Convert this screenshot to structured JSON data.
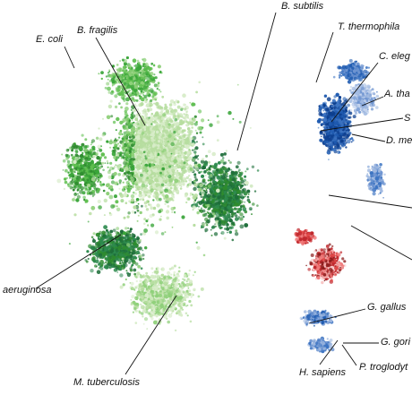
{
  "palette": {
    "bacteria": [
      "#2e8b2e",
      "#3aa53a",
      "#5fbf4f",
      "#8fd07a",
      "#b6dd9f",
      "#d7ecc8",
      "#1e6e3a",
      "#2d8a4e"
    ],
    "animals_blue": [
      "#0d3f8f",
      "#1f5bb0",
      "#3d74c2",
      "#6f95d1",
      "#9fb8e0",
      "#c9d7ef"
    ],
    "plants_red": [
      "#8b1a1a",
      "#c0282d",
      "#e04848",
      "#f07b7b",
      "#f6a9a9",
      "#fbd3d3"
    ],
    "line": "#111111"
  },
  "clusters": [
    {
      "id": "bacteria",
      "palette": "bacteria",
      "icon": "green-point-cloud"
    },
    {
      "id": "eukaryote-upper",
      "palette": "animals_blue",
      "icon": "blue-point-cloud"
    },
    {
      "id": "plant-like",
      "palette": "plants_red",
      "icon": "red-point-cloud"
    },
    {
      "id": "primates",
      "palette": "animals_blue",
      "icon": "blue-point-cloud"
    }
  ],
  "labels": {
    "e_coli": "E. coli",
    "b_fragilis": "B. fragilis",
    "b_subtilis": "B. subtilis",
    "t_thermophila": "T. thermophila",
    "c_elegans": "C. eleg",
    "a_thaliana": "A. tha",
    "s_cut": "S",
    "d_melanogaster": "D. me",
    "p_aeruginosa": "aeruginosa",
    "m_tuberculosis": "M. tuberculosis",
    "g_gallus": "G. gallus",
    "g_gorilla": "G. gori",
    "h_sapiens": "H. sapiens",
    "p_troglodytes": "P. troglodyt"
  }
}
